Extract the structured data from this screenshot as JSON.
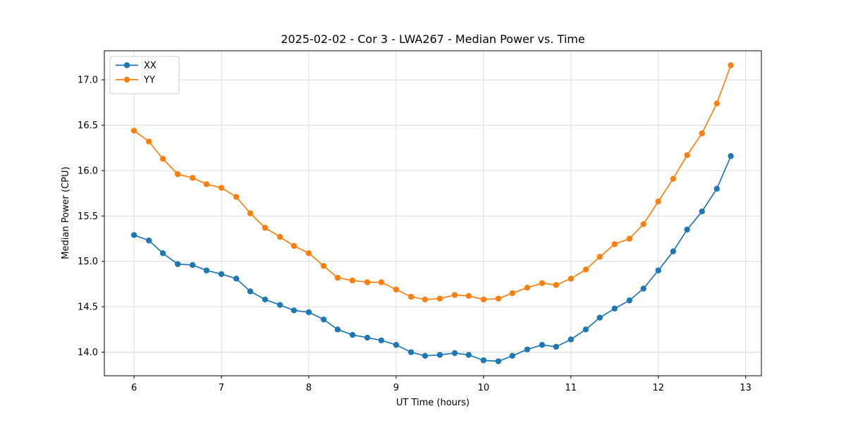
{
  "chart_data": {
    "type": "line",
    "title": "2025-02-02 - Cor 3 - LWA267 - Median Power vs. Time",
    "xlabel": "UT Time (hours)",
    "ylabel": "Median Power (CPU)",
    "xlim": [
      5.66,
      13.18
    ],
    "ylim": [
      13.74,
      17.32
    ],
    "xticks": [
      6,
      7,
      8,
      9,
      10,
      11,
      12,
      13
    ],
    "yticks": [
      14.0,
      14.5,
      15.0,
      15.5,
      16.0,
      16.5,
      17.0
    ],
    "grid": true,
    "legend_position": "upper left",
    "x": [
      6.0,
      6.17,
      6.33,
      6.5,
      6.67,
      6.83,
      7.0,
      7.17,
      7.33,
      7.5,
      7.67,
      7.83,
      8.0,
      8.17,
      8.33,
      8.5,
      8.67,
      8.83,
      9.0,
      9.17,
      9.33,
      9.5,
      9.67,
      9.83,
      10.0,
      10.17,
      10.33,
      10.5,
      10.67,
      10.83,
      11.0,
      11.17,
      11.33,
      11.5,
      11.67,
      11.83,
      12.0,
      12.17,
      12.33,
      12.5,
      12.67,
      12.83
    ],
    "series": [
      {
        "name": "XX",
        "color": "#1f77b4",
        "values": [
          15.29,
          15.23,
          15.09,
          14.97,
          14.96,
          14.9,
          14.86,
          14.81,
          14.67,
          14.58,
          14.52,
          14.46,
          14.44,
          14.36,
          14.25,
          14.19,
          14.16,
          14.13,
          14.08,
          14.0,
          13.96,
          13.97,
          13.99,
          13.97,
          13.91,
          13.9,
          13.96,
          14.03,
          14.08,
          14.06,
          14.14,
          14.25,
          14.38,
          14.48,
          14.57,
          14.7,
          14.9,
          15.11,
          15.35,
          15.55,
          15.8,
          16.16
        ]
      },
      {
        "name": "YY",
        "color": "#ff7f0e",
        "values": [
          16.44,
          16.32,
          16.13,
          15.96,
          15.92,
          15.85,
          15.81,
          15.71,
          15.53,
          15.37,
          15.27,
          15.17,
          15.09,
          14.95,
          14.82,
          14.79,
          14.77,
          14.77,
          14.69,
          14.61,
          14.58,
          14.59,
          14.63,
          14.62,
          14.58,
          14.59,
          14.65,
          14.71,
          14.76,
          14.74,
          14.81,
          14.91,
          15.05,
          15.19,
          15.25,
          15.41,
          15.66,
          15.91,
          16.17,
          16.41,
          16.74,
          17.16
        ]
      }
    ],
    "style": {
      "grid_color": "#dddddd",
      "axes_edge_color": "#000000",
      "background": "#ffffff",
      "line_width": 1.7,
      "marker_radius": 4.2
    }
  }
}
